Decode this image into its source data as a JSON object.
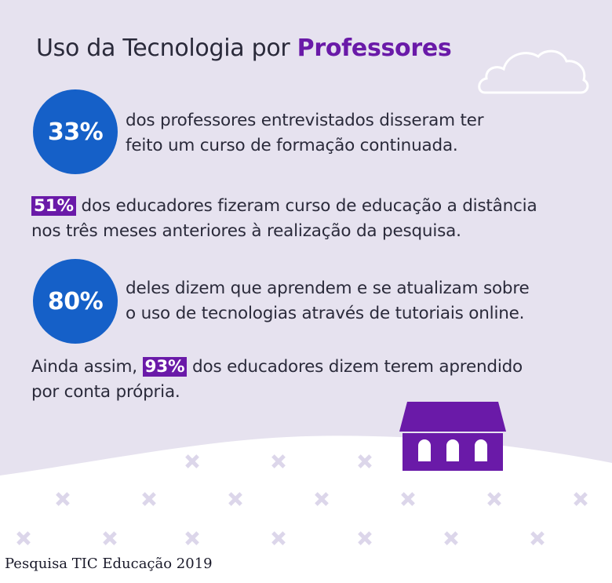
{
  "title": {
    "prefix": "Uso da Tecnologia por ",
    "emphasis": "Professores"
  },
  "stats": [
    {
      "value": "33%",
      "lines": [
        "dos professores entrevistados disseram ter",
        "feito um curso de formação continuada."
      ]
    },
    {
      "value": "51%",
      "line1_rest": " dos educadores fizeram curso de educação a distância",
      "line2": "nos três meses anteriores à realização da pesquisa."
    },
    {
      "value": "80%",
      "lines": [
        "deles dizem que aprendem e se atualizam sobre",
        "o uso de tecnologias através de tutoriais online."
      ]
    },
    {
      "lead": "Ainda assim, ",
      "value": "93%",
      "line1_rest": " dos educadores dizem terem aprendido",
      "line2": "por conta própria."
    }
  ],
  "source": "Pesquisa TIC Educação 2019",
  "colors": {
    "background": "#e6e2ef",
    "accent_purple": "#6a1aa8",
    "circle_blue": "#1560c8",
    "text": "#2a2a3a"
  },
  "icons": [
    "cloud-icon",
    "school-house-icon",
    "sparkle-pattern"
  ]
}
